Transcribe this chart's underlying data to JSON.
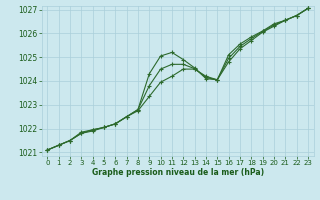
{
  "line1_x": [
    0,
    1,
    2,
    3,
    4,
    5,
    6,
    7,
    8,
    9,
    10,
    11,
    12,
    13,
    14,
    15,
    16,
    17,
    18,
    19,
    20,
    21,
    22,
    23
  ],
  "line1_y": [
    1021.1,
    1021.3,
    1021.5,
    1021.85,
    1021.95,
    1022.05,
    1022.2,
    1022.5,
    1022.8,
    1024.3,
    1025.05,
    1025.2,
    1024.9,
    1024.55,
    1024.1,
    1024.05,
    1025.1,
    1025.55,
    1025.85,
    1026.1,
    1026.4,
    1026.55,
    1026.75,
    1027.05
  ],
  "line2_x": [
    0,
    1,
    2,
    3,
    4,
    5,
    6,
    7,
    8,
    9,
    10,
    11,
    12,
    13,
    14,
    15,
    16,
    17,
    18,
    19,
    20,
    21,
    22,
    23
  ],
  "line2_y": [
    1021.1,
    1021.3,
    1021.5,
    1021.8,
    1021.9,
    1022.05,
    1022.2,
    1022.5,
    1022.75,
    1023.35,
    1023.95,
    1024.2,
    1024.5,
    1024.5,
    1024.2,
    1024.05,
    1024.8,
    1025.35,
    1025.7,
    1026.05,
    1026.3,
    1026.55,
    1026.75,
    1027.05
  ],
  "line3_x": [
    0,
    1,
    2,
    3,
    4,
    5,
    6,
    7,
    8,
    9,
    10,
    11,
    12,
    13,
    14,
    15,
    16,
    17,
    18,
    19,
    20,
    21,
    22,
    23
  ],
  "line3_y": [
    1021.1,
    1021.3,
    1021.5,
    1021.8,
    1021.95,
    1022.05,
    1022.2,
    1022.5,
    1022.8,
    1023.8,
    1024.5,
    1024.7,
    1024.7,
    1024.52,
    1024.15,
    1024.05,
    1024.95,
    1025.45,
    1025.78,
    1026.08,
    1026.35,
    1026.55,
    1026.75,
    1027.05
  ],
  "line_color": "#2d6a2d",
  "bg_color": "#cce8ee",
  "grid_color": "#aacfda",
  "text_color": "#1a5c1a",
  "xlabel": "Graphe pression niveau de la mer (hPa)",
  "ylim": [
    1021.0,
    1027.0
  ],
  "xlim": [
    0,
    23
  ],
  "yticks": [
    1021,
    1022,
    1023,
    1024,
    1025,
    1026,
    1027
  ],
  "xticks": [
    0,
    1,
    2,
    3,
    4,
    5,
    6,
    7,
    8,
    9,
    10,
    11,
    12,
    13,
    14,
    15,
    16,
    17,
    18,
    19,
    20,
    21,
    22,
    23
  ],
  "xtick_labels": [
    "0",
    "1",
    "2",
    "3",
    "4",
    "5",
    "6",
    "7",
    "8",
    "9",
    "10",
    "11",
    "12",
    "13",
    "14",
    "15",
    "16",
    "17",
    "18",
    "19",
    "20",
    "21",
    "22",
    "23"
  ]
}
